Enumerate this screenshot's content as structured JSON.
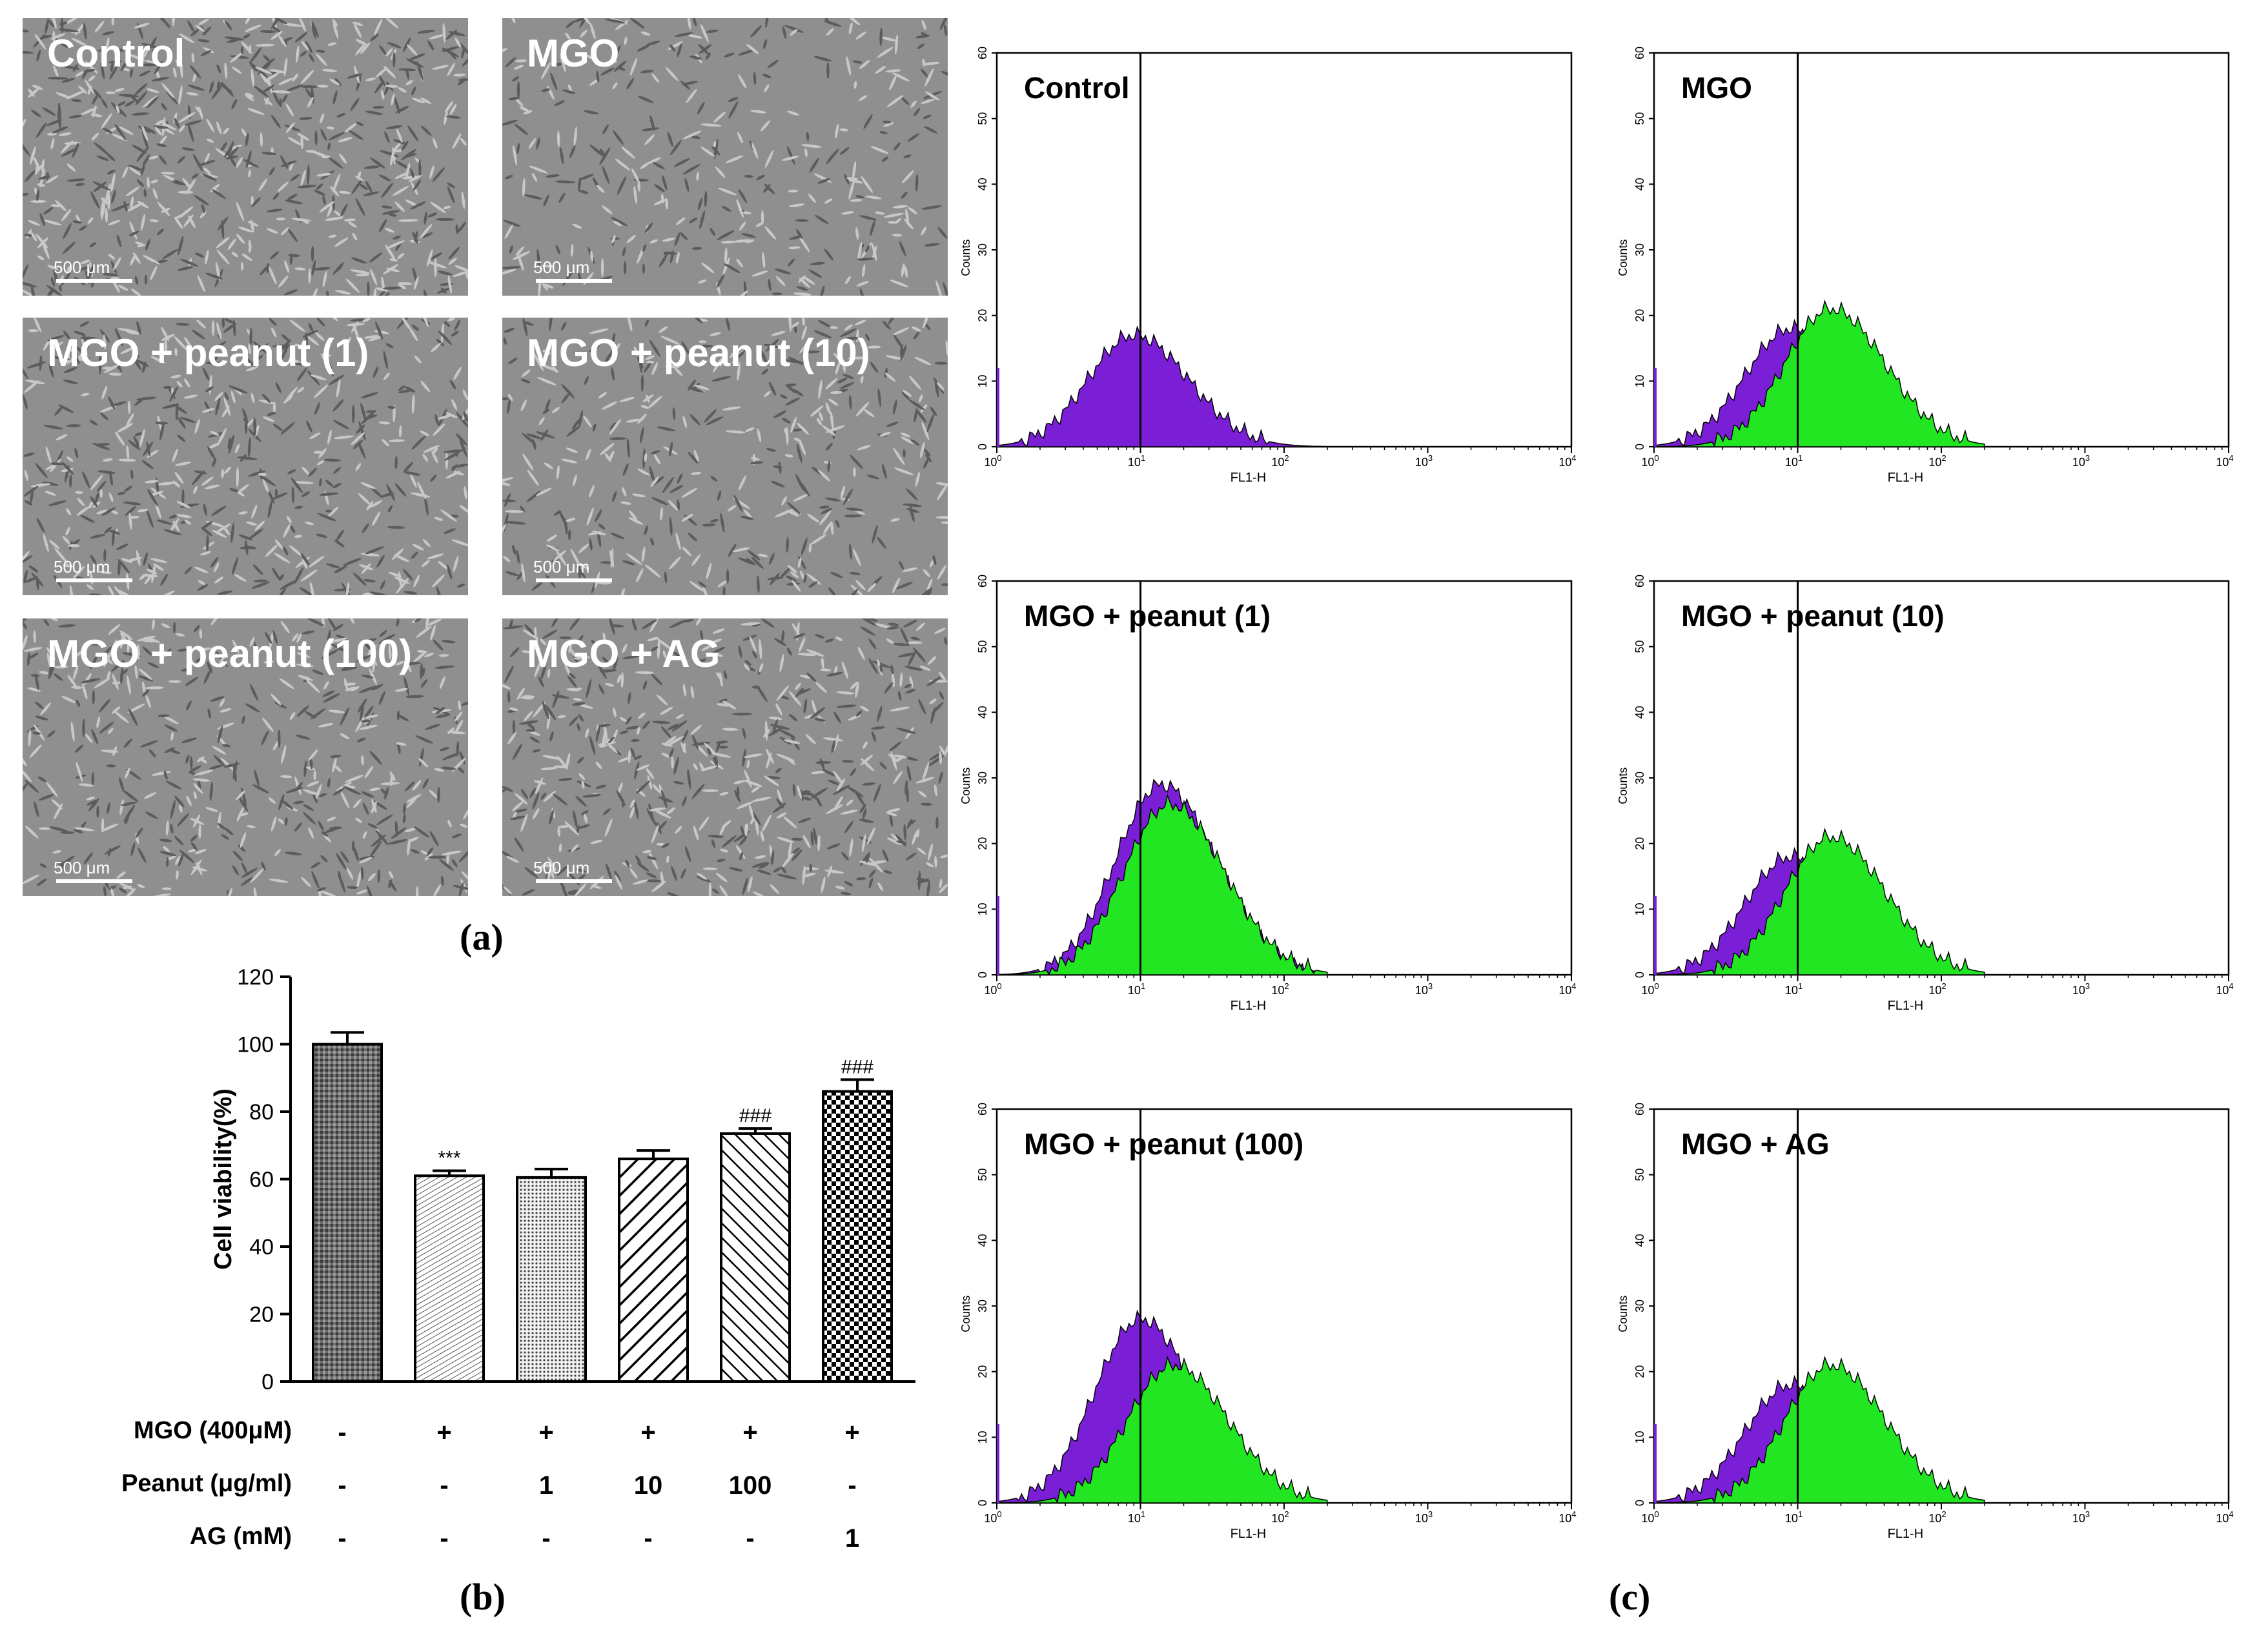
{
  "panel_letters": {
    "a": "(a)",
    "b": "(b)",
    "c": "(c)"
  },
  "micrographs": [
    {
      "label": "Control",
      "scale": "500 μm",
      "density": 0.95
    },
    {
      "label": "MGO",
      "scale": "500 μm",
      "density": 0.45
    },
    {
      "label": "MGO + peanut (1)",
      "scale": "500 μm",
      "density": 0.75
    },
    {
      "label": "MGO + peanut (10)",
      "scale": "500 μm",
      "density": 0.55
    },
    {
      "label": "MGO + peanut (100)",
      "scale": "500 μm",
      "density": 0.7
    },
    {
      "label": "MGO + AG",
      "scale": "500 μm",
      "density": 0.8
    }
  ],
  "chart_data": [
    {
      "type": "bar",
      "categories": [
        "Control",
        "MGO",
        "MGO + peanut 1",
        "MGO + peanut 10",
        "MGO + peanut 100",
        "MGO + AG 1"
      ],
      "values": [
        100,
        61,
        60.5,
        66,
        73.5,
        86
      ],
      "errors": [
        3.5,
        1.5,
        2.5,
        2.5,
        1.5,
        3.5
      ],
      "annotations": [
        "",
        "***",
        "",
        "",
        "###",
        "###"
      ],
      "ylabel": "Cell viability(%)",
      "ylim": [
        0,
        120
      ],
      "yticks": [
        "0",
        "20",
        "40",
        "60",
        "80",
        "100",
        "120"
      ],
      "treatment_table": [
        {
          "label": "MGO (400μM)",
          "values": [
            "-",
            "+",
            "+",
            "+",
            "+",
            "+"
          ]
        },
        {
          "label": "Peanut (μg/ml)",
          "values": [
            "-",
            "-",
            "1",
            "10",
            "100",
            "-"
          ]
        },
        {
          "label": "AG (mM)",
          "values": [
            "-",
            "-",
            "-",
            "-",
            "-",
            "1"
          ]
        }
      ]
    },
    {
      "type": "histogram",
      "xlabel": "FL1-H",
      "ylabel": "Counts",
      "xscale": "log",
      "xlim": [
        1,
        10000
      ],
      "ylim": [
        0,
        60
      ],
      "yticks": [
        "0",
        "10",
        "20",
        "30",
        "40",
        "50",
        "60"
      ],
      "xticks": [
        "10^0",
        "10^1",
        "10^2",
        "10^3",
        "10^4"
      ],
      "gate": 10,
      "colors": {
        "reference": "#7a1fd6",
        "treated": "#22e622"
      },
      "panels": [
        {
          "label": "Control",
          "purple_peak": 17,
          "purple_center": 9,
          "green_peak": 0,
          "green_center": 0
        },
        {
          "label": "MGO",
          "purple_peak": 18,
          "purple_center": 9,
          "green_peak": 21,
          "green_center": 17
        },
        {
          "label": "MGO + peanut (1)",
          "purple_peak": 29,
          "purple_center": 14,
          "green_peak": 26,
          "green_center": 16
        },
        {
          "label": "MGO + peanut (10)",
          "purple_peak": 18,
          "purple_center": 9,
          "green_peak": 21,
          "green_center": 17
        },
        {
          "label": "MGO + peanut (100)",
          "purple_peak": 28,
          "purple_center": 10,
          "green_peak": 21,
          "green_center": 17
        },
        {
          "label": "MGO + AG",
          "purple_peak": 18,
          "purple_center": 9,
          "green_peak": 21,
          "green_center": 17
        }
      ]
    }
  ]
}
